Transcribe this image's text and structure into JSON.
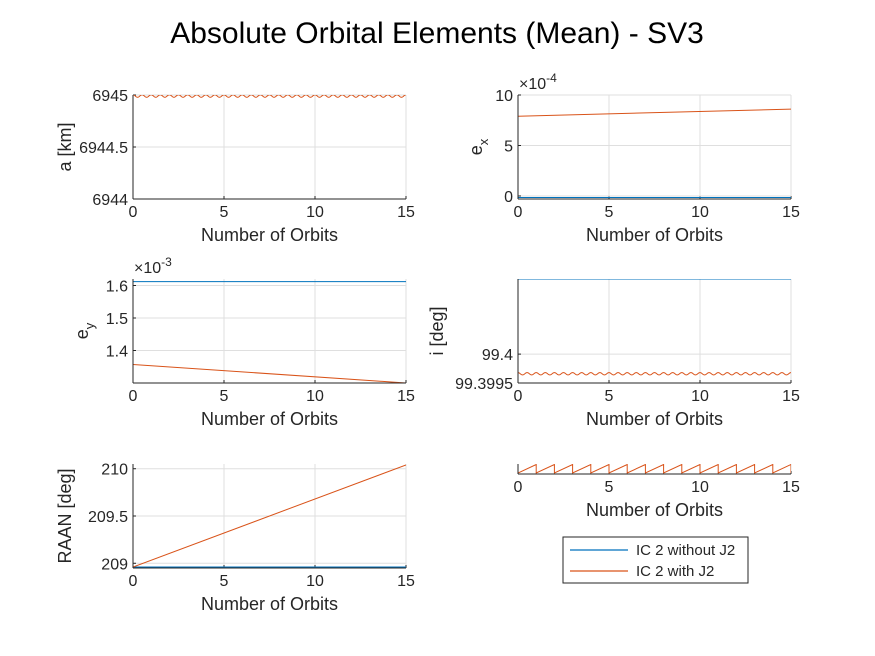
{
  "figure": {
    "title": "Absolute Orbital Elements (Mean) - SV3"
  },
  "legend": {
    "placement": "below-right-panel",
    "entries": [
      "IC 2 without J2",
      "IC 2 with J2"
    ]
  },
  "colors": {
    "without_j2": "#0072BD",
    "with_j2": "#D95319",
    "grid": "#dfdfdf",
    "axis": "#262626"
  },
  "chart_data": [
    {
      "type": "line",
      "title": "",
      "xlabel": "Number of Orbits",
      "ylabel": "a [km]",
      "xlim": [
        0,
        15
      ],
      "ylim": [
        6944,
        6945
      ],
      "xticks": [
        "0",
        "5",
        "10",
        "15"
      ],
      "yticks": [
        "6944",
        "6944.5",
        "6945"
      ],
      "yexponent": "",
      "grid": true,
      "series": [
        {
          "name": "IC 2 with J2",
          "kind": "oscillation",
          "mean": 6944.99,
          "amplitude": 0.012,
          "cycles": 30
        }
      ]
    },
    {
      "type": "line",
      "title": "",
      "xlabel": "Number of Orbits",
      "ylabel": "e",
      "ylabel_sub": "x",
      "xlim": [
        0,
        15
      ],
      "ylim": [
        -0.3,
        10
      ],
      "xticks": [
        "0",
        "5",
        "10",
        "15"
      ],
      "yticks": [
        "0",
        "5",
        "10"
      ],
      "yexponent": "-4",
      "grid": true,
      "series": [
        {
          "name": "IC 2 without J2",
          "x": [
            0,
            15
          ],
          "y": [
            -0.15,
            -0.15
          ]
        },
        {
          "name": "IC 2 with J2",
          "x": [
            0,
            15
          ],
          "y": [
            7.9,
            8.6
          ]
        }
      ]
    },
    {
      "type": "line",
      "title": "",
      "xlabel": "Number of Orbits",
      "ylabel": "e",
      "ylabel_sub": "y",
      "xlim": [
        0,
        15
      ],
      "ylim": [
        1.3,
        1.62
      ],
      "xticks": [
        "0",
        "5",
        "10",
        "15"
      ],
      "yticks": [
        "1.4",
        "1.5",
        "1.6"
      ],
      "yexponent": "-3",
      "grid": true,
      "series": [
        {
          "name": "IC 2 without J2",
          "x": [
            0,
            15
          ],
          "y": [
            1.612,
            1.612
          ]
        },
        {
          "name": "IC 2 with J2",
          "x": [
            0,
            15
          ],
          "y": [
            1.357,
            1.3
          ]
        }
      ]
    },
    {
      "type": "line",
      "title": "",
      "xlabel": "Number of Orbits",
      "ylabel": "i [deg]",
      "xlim": [
        0,
        15
      ],
      "ylim": [
        99.3995,
        99.4013
      ],
      "xticks": [
        "0",
        "5",
        "10",
        "15"
      ],
      "yticks": [
        "99.3995",
        "99.4"
      ],
      "yexponent": "",
      "grid": true,
      "series": [
        {
          "name": "IC 2 without J2",
          "x": [
            0,
            15
          ],
          "y": [
            99.4013,
            99.4013
          ]
        },
        {
          "name": "IC 2 with J2",
          "kind": "oscillation",
          "mean": 99.39966,
          "amplitude": 2e-05,
          "cycles": 30
        }
      ]
    },
    {
      "type": "line",
      "title": "",
      "xlabel": "Number of Orbits",
      "ylabel": "RAAN [deg]",
      "xlim": [
        0,
        15
      ],
      "ylim": [
        208.95,
        210.05
      ],
      "xticks": [
        "0",
        "5",
        "10",
        "15"
      ],
      "yticks": [
        "209",
        "209.5",
        "210"
      ],
      "yexponent": "",
      "grid": true,
      "series": [
        {
          "name": "IC 2 without J2",
          "x": [
            0,
            15
          ],
          "y": [
            208.96,
            208.96
          ]
        },
        {
          "name": "IC 2 with J2",
          "x": [
            0,
            15
          ],
          "y": [
            208.96,
            210.04
          ]
        }
      ]
    },
    {
      "type": "line",
      "title": "",
      "xlabel": "Number of Orbits",
      "ylabel": "",
      "xlim": [
        0,
        15
      ],
      "ylim": [
        0,
        1
      ],
      "xticks": [
        "0",
        "5",
        "10",
        "15"
      ],
      "yticks": [],
      "yexponent": "",
      "grid": true,
      "series": [
        {
          "name": "IC 2 with J2",
          "kind": "sawtooth",
          "low": 0.1,
          "high": 0.95,
          "cycles": 15
        }
      ]
    }
  ]
}
